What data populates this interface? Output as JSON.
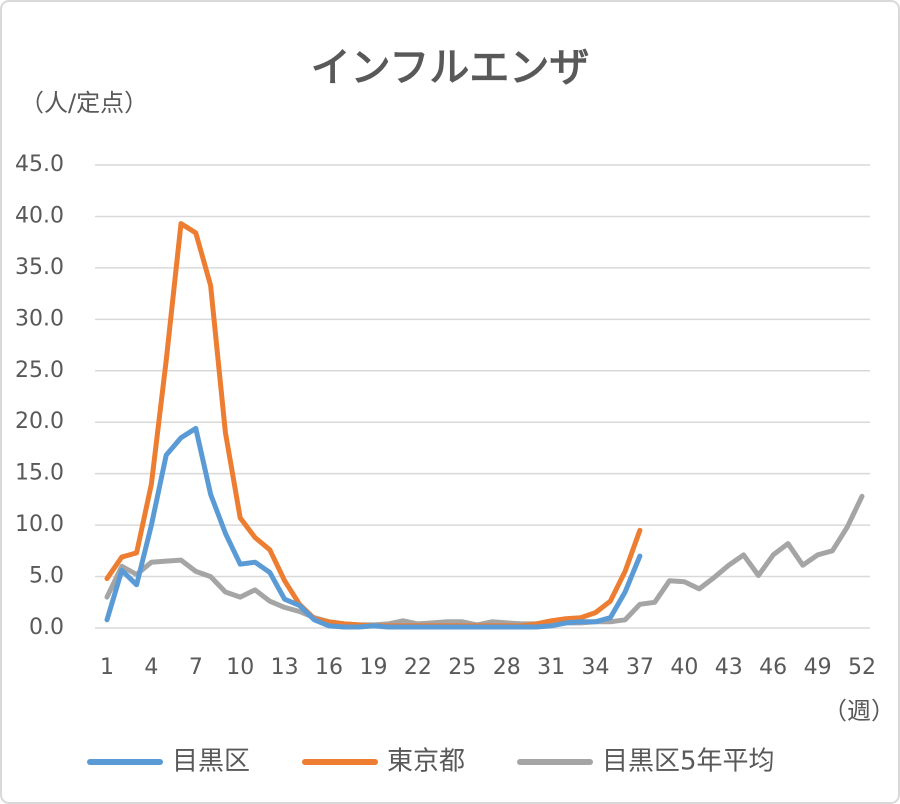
{
  "chart_data": {
    "type": "line",
    "title": "インフルエンザ",
    "y_label": "（人/定点）",
    "x_label": "（週）",
    "x": [
      1,
      2,
      3,
      4,
      5,
      6,
      7,
      8,
      9,
      10,
      11,
      12,
      13,
      14,
      15,
      16,
      17,
      18,
      19,
      20,
      21,
      22,
      23,
      24,
      25,
      26,
      27,
      28,
      29,
      30,
      31,
      32,
      33,
      34,
      35,
      36,
      37,
      38,
      39,
      40,
      41,
      42,
      43,
      44,
      45,
      46,
      47,
      48,
      49,
      50,
      51,
      52
    ],
    "xlim": [
      1,
      52
    ],
    "xticks": [
      1,
      4,
      7,
      10,
      13,
      16,
      19,
      22,
      25,
      28,
      31,
      34,
      37,
      40,
      43,
      46,
      49,
      52
    ],
    "ylim": [
      0,
      45
    ],
    "yticks": [
      {
        "value": 0,
        "label": "0.0"
      },
      {
        "value": 5,
        "label": "5.0"
      },
      {
        "value": 10,
        "label": "10.0"
      },
      {
        "value": 15,
        "label": "15.0"
      },
      {
        "value": 20,
        "label": "20.0"
      },
      {
        "value": 25,
        "label": "25.0"
      },
      {
        "value": 30,
        "label": "30.0"
      },
      {
        "value": 35,
        "label": "35.0"
      },
      {
        "value": 40,
        "label": "40.0"
      },
      {
        "value": 45,
        "label": "45.0"
      }
    ],
    "grid": true,
    "legend": "bottom",
    "series": [
      {
        "name": "目黒区",
        "color": "#5b9bd5",
        "values": [
          0.8,
          5.6,
          4.2,
          10.0,
          16.8,
          18.5,
          19.4,
          13.0,
          9.2,
          6.2,
          6.4,
          5.4,
          2.8,
          2.2,
          0.8,
          0.2,
          0.1,
          0.1,
          0.2,
          0.1,
          0.1,
          0.1,
          0.1,
          0.1,
          0.1,
          0.1,
          0.1,
          0.1,
          0.1,
          0.1,
          0.2,
          0.5,
          0.6,
          0.6,
          1.0,
          3.5,
          7.0,
          null,
          null,
          null,
          null,
          null,
          null,
          null,
          null,
          null,
          null,
          null,
          null,
          null,
          null,
          null
        ]
      },
      {
        "name": "東京都",
        "color": "#ed7d31",
        "values": [
          4.8,
          6.9,
          7.3,
          14.0,
          26.0,
          39.3,
          38.4,
          33.3,
          19.0,
          10.7,
          8.8,
          7.6,
          4.6,
          2.3,
          0.9,
          0.6,
          0.4,
          0.3,
          0.2,
          0.2,
          0.2,
          0.2,
          0.2,
          0.2,
          0.2,
          0.2,
          0.2,
          0.2,
          0.2,
          0.4,
          0.7,
          0.9,
          1.0,
          1.5,
          2.6,
          5.5,
          9.5,
          null,
          null,
          null,
          null,
          null,
          null,
          null,
          null,
          null,
          null,
          null,
          null,
          null,
          null,
          null
        ]
      },
      {
        "name": "目黒区5年平均",
        "color": "#a5a5a5",
        "values": [
          3.0,
          6.0,
          5.2,
          6.4,
          6.5,
          6.6,
          5.5,
          5.0,
          3.5,
          3.0,
          3.7,
          2.6,
          2.0,
          1.6,
          1.0,
          0.6,
          0.4,
          0.3,
          0.3,
          0.4,
          0.7,
          0.4,
          0.5,
          0.6,
          0.6,
          0.3,
          0.6,
          0.5,
          0.4,
          0.4,
          0.4,
          0.5,
          0.5,
          0.6,
          0.6,
          0.8,
          2.3,
          2.5,
          4.6,
          4.5,
          3.8,
          4.9,
          6.1,
          7.1,
          5.1,
          7.1,
          8.2,
          6.1,
          7.1,
          7.5,
          9.8,
          12.8
        ]
      }
    ]
  }
}
